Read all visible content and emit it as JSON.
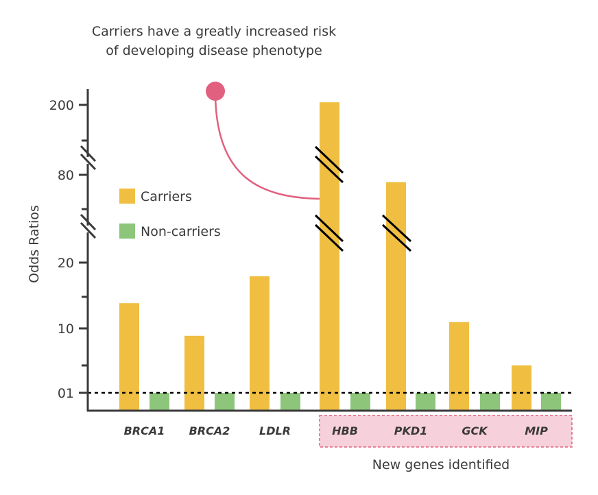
{
  "chart_data": {
    "type": "bar",
    "title": "",
    "annotation": [
      "Carriers have a greatly increased risk",
      "of developing disease phenotype"
    ],
    "ylabel": "Odds Ratios",
    "xlabel": "",
    "y_scale": "broken (axis breaks between 20–80 and 80–200)",
    "yticks": [
      "200",
      "80",
      "20",
      "10",
      "01"
    ],
    "categories": [
      "BRCA1",
      "BRCA2",
      "LDLR",
      "HBB",
      "PKD1",
      "GCK",
      "MIP"
    ],
    "series": [
      {
        "name": "Carriers",
        "color": "#f0bf42",
        "values": [
          14,
          9,
          18,
          205,
          75,
          11,
          5
        ]
      },
      {
        "name": "Non-carriers",
        "color": "#8dc67b",
        "values": [
          1,
          1,
          1,
          1,
          1,
          1,
          1
        ]
      }
    ],
    "reference_line": 1,
    "group_label": "New genes identified",
    "group_categories": [
      "HBB",
      "PKD1",
      "GCK",
      "MIP"
    ],
    "group_color": "#f6d0da",
    "annotation_color": "#e2607f",
    "legend": "upper-left inside"
  }
}
